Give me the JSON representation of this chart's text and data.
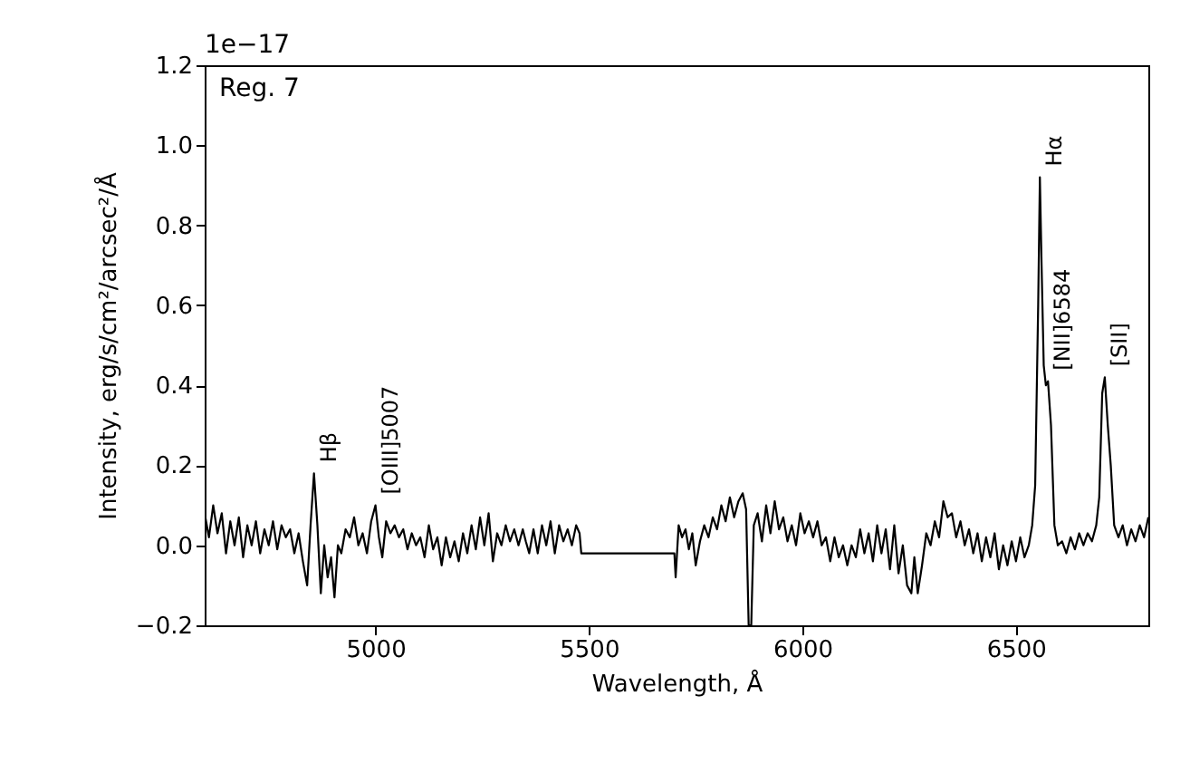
{
  "chart_data": {
    "type": "line",
    "xlabel": "Wavelength, Å",
    "ylabel": "Intensity, erg/s/cm²/arcsec²/Å",
    "xlim": [
      4600,
      6810
    ],
    "xticks": [
      5000,
      5500,
      6000,
      6500
    ],
    "ylim": [
      -0.2,
      1.2
    ],
    "yticks": [
      {
        "value": -0.2,
        "label": "−0.2"
      },
      {
        "value": 0,
        "label": "0.0"
      },
      0.2,
      0.4,
      0.6,
      0.8,
      {
        "value": 1,
        "label": "1.0"
      },
      1.2
    ],
    "grid": false,
    "marker": "none",
    "line_style": "solid",
    "annotations": [
      "Reg. 7",
      "1e−17",
      {
        "text": "Hβ",
        "x": 4856,
        "y": 0.18
      },
      {
        "text": "[OIII]5007",
        "x": 5000,
        "y": 0.1
      },
      {
        "text": "Hα",
        "x": 6556,
        "y": 0.92
      },
      {
        "text": "[NII]6584",
        "x": 6575,
        "y": 0.41
      },
      {
        "text": "[SII]",
        "x": 6708,
        "y": 0.42
      }
    ],
    "series": [
      {
        "color": "#000000",
        "x": [
          4600,
          4610,
          4620,
          4630,
          4640,
          4650,
          4660,
          4670,
          4680,
          4690,
          4700,
          4710,
          4720,
          4730,
          4740,
          4750,
          4760,
          4770,
          4780,
          4790,
          4800,
          4810,
          4820,
          4830,
          4840,
          4848,
          4856,
          4864,
          4872,
          4880,
          4888,
          4896,
          4904,
          4912,
          4920,
          4930,
          4940,
          4950,
          4960,
          4970,
          4980,
          4990,
          5000,
          5008,
          5016,
          5025,
          5035,
          5045,
          5055,
          5065,
          5075,
          5085,
          5095,
          5105,
          5115,
          5125,
          5135,
          5145,
          5155,
          5165,
          5175,
          5185,
          5195,
          5205,
          5215,
          5225,
          5235,
          5245,
          5255,
          5265,
          5275,
          5285,
          5295,
          5305,
          5315,
          5325,
          5335,
          5345,
          5352,
          5360,
          5370,
          5380,
          5390,
          5400,
          5410,
          5420,
          5430,
          5440,
          5450,
          5460,
          5470,
          5478,
          5482,
          5700,
          5703,
          5710,
          5718,
          5726,
          5734,
          5742,
          5750,
          5760,
          5770,
          5780,
          5790,
          5800,
          5810,
          5820,
          5830,
          5840,
          5850,
          5860,
          5868,
          5874,
          5880,
          5886,
          5895,
          5905,
          5915,
          5925,
          5935,
          5945,
          5955,
          5965,
          5975,
          5985,
          5995,
          6005,
          6015,
          6025,
          6035,
          6045,
          6055,
          6065,
          6075,
          6085,
          6095,
          6105,
          6115,
          6125,
          6135,
          6145,
          6155,
          6165,
          6175,
          6185,
          6195,
          6205,
          6215,
          6225,
          6235,
          6245,
          6255,
          6262,
          6270,
          6280,
          6290,
          6300,
          6310,
          6320,
          6330,
          6340,
          6350,
          6360,
          6370,
          6380,
          6390,
          6400,
          6410,
          6420,
          6430,
          6440,
          6450,
          6460,
          6470,
          6480,
          6490,
          6500,
          6510,
          6520,
          6530,
          6538,
          6545,
          6552,
          6556,
          6560,
          6565,
          6570,
          6575,
          6582,
          6590,
          6598,
          6608,
          6618,
          6628,
          6638,
          6648,
          6658,
          6668,
          6678,
          6688,
          6695,
          6702,
          6708,
          6715,
          6722,
          6730,
          6740,
          6750,
          6760,
          6770,
          6780,
          6790,
          6800,
          6810
        ],
        "values": [
          0.08,
          0.02,
          0.1,
          0.03,
          0.08,
          -0.02,
          0.06,
          0.0,
          0.07,
          -0.03,
          0.05,
          0.0,
          0.06,
          -0.02,
          0.04,
          0.0,
          0.06,
          -0.01,
          0.05,
          0.02,
          0.04,
          -0.02,
          0.03,
          -0.04,
          -0.1,
          0.05,
          0.18,
          0.05,
          -0.12,
          0.0,
          -0.08,
          -0.03,
          -0.13,
          0.0,
          -0.02,
          0.04,
          0.02,
          0.07,
          0.0,
          0.03,
          -0.02,
          0.06,
          0.1,
          0.02,
          -0.03,
          0.06,
          0.03,
          0.05,
          0.02,
          0.04,
          -0.01,
          0.03,
          0.0,
          0.02,
          -0.03,
          0.05,
          -0.01,
          0.02,
          -0.05,
          0.02,
          -0.03,
          0.01,
          -0.04,
          0.03,
          -0.02,
          0.05,
          -0.01,
          0.07,
          0.0,
          0.08,
          -0.04,
          0.03,
          0.0,
          0.05,
          0.01,
          0.04,
          0.0,
          0.04,
          0.01,
          -0.02,
          0.04,
          -0.02,
          0.05,
          0.0,
          0.06,
          -0.02,
          0.05,
          0.01,
          0.04,
          0.0,
          0.05,
          0.03,
          -0.02,
          -0.02,
          -0.08,
          0.05,
          0.02,
          0.04,
          -0.01,
          0.03,
          -0.05,
          0.01,
          0.05,
          0.02,
          0.07,
          0.04,
          0.1,
          0.06,
          0.12,
          0.07,
          0.11,
          0.13,
          0.09,
          -0.2,
          -0.2,
          0.05,
          0.08,
          0.01,
          0.1,
          0.03,
          0.11,
          0.04,
          0.07,
          0.01,
          0.05,
          0.0,
          0.08,
          0.03,
          0.06,
          0.02,
          0.06,
          0.0,
          0.02,
          -0.04,
          0.02,
          -0.03,
          0.0,
          -0.05,
          0.0,
          -0.03,
          0.04,
          -0.02,
          0.03,
          -0.04,
          0.05,
          -0.02,
          0.04,
          -0.06,
          0.05,
          -0.07,
          0.0,
          -0.1,
          -0.12,
          -0.03,
          -0.12,
          -0.05,
          0.03,
          0.0,
          0.06,
          0.02,
          0.11,
          0.07,
          0.08,
          0.02,
          0.06,
          0.0,
          0.04,
          -0.02,
          0.03,
          -0.04,
          0.02,
          -0.03,
          0.03,
          -0.06,
          0.0,
          -0.05,
          0.01,
          -0.04,
          0.02,
          -0.03,
          0.0,
          0.05,
          0.15,
          0.6,
          0.92,
          0.7,
          0.45,
          0.4,
          0.41,
          0.3,
          0.05,
          0.0,
          0.01,
          -0.02,
          0.02,
          -0.01,
          0.03,
          0.0,
          0.03,
          0.01,
          0.05,
          0.12,
          0.38,
          0.42,
          0.3,
          0.2,
          0.05,
          0.02,
          0.05,
          0.0,
          0.04,
          0.01,
          0.05,
          0.02,
          0.07
        ]
      }
    ]
  }
}
